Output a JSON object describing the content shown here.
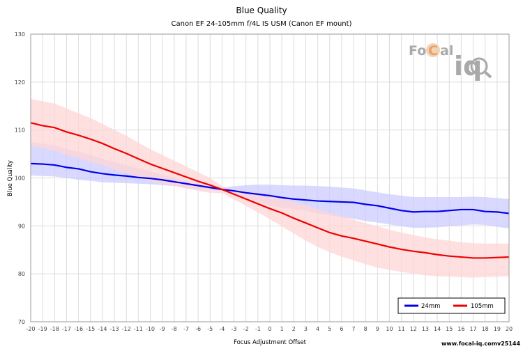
{
  "chart_data": {
    "type": "line",
    "title": "Blue Quality",
    "subtitle": "Canon EF 24-105mm f/4L IS USM (Canon EF mount)",
    "xlabel": "Focus Adjustment Offset",
    "ylabel": "Blue Quality",
    "xlim": [
      -20,
      20
    ],
    "ylim": [
      70,
      130
    ],
    "yticks": [
      70,
      80,
      90,
      100,
      110,
      120,
      130
    ],
    "x": [
      -20,
      -19,
      -18,
      -17,
      -16,
      -15,
      -14,
      -13,
      -12,
      -11,
      -10,
      -9,
      -8,
      -7,
      -6,
      -5,
      -4,
      -3,
      -2,
      -1,
      0,
      1,
      2,
      3,
      4,
      5,
      6,
      7,
      8,
      9,
      10,
      11,
      12,
      13,
      14,
      15,
      16,
      17,
      18,
      19,
      20
    ],
    "grid": true,
    "legend_position": "bottom-right",
    "series": [
      {
        "name": "24mm",
        "color": "#0000ee",
        "band_color": "#ccccff",
        "values": [
          103.0,
          102.9,
          102.7,
          102.2,
          101.9,
          101.3,
          100.9,
          100.6,
          100.4,
          100.1,
          99.9,
          99.6,
          99.2,
          98.8,
          98.4,
          98.0,
          97.6,
          97.3,
          96.9,
          96.6,
          96.3,
          95.9,
          95.6,
          95.4,
          95.2,
          95.1,
          95.0,
          94.9,
          94.5,
          94.2,
          93.7,
          93.2,
          92.9,
          93.0,
          93.0,
          93.2,
          93.4,
          93.4,
          93.0,
          92.9,
          92.6
        ],
        "upper": [
          107.5,
          107.2,
          106.8,
          106.0,
          105.5,
          104.8,
          104.0,
          103.3,
          102.7,
          102.0,
          101.4,
          100.7,
          100.0,
          99.4,
          98.9,
          98.2,
          98.0,
          98.3,
          98.5,
          98.6,
          98.6,
          98.5,
          98.4,
          98.4,
          98.3,
          98.2,
          98.0,
          97.8,
          97.4,
          97.0,
          96.6,
          96.3,
          96.0,
          96.0,
          96.0,
          96.0,
          96.0,
          96.1,
          96.0,
          95.8,
          95.6
        ],
        "lower": [
          100.5,
          100.4,
          100.3,
          100.0,
          99.6,
          99.4,
          99.1,
          99.0,
          98.9,
          98.8,
          98.7,
          98.5,
          98.3,
          97.9,
          97.6,
          97.5,
          97.3,
          96.6,
          95.6,
          95.0,
          94.2,
          93.8,
          93.5,
          93.2,
          92.6,
          92.2,
          91.8,
          91.5,
          91.0,
          90.7,
          90.3,
          89.9,
          89.6,
          89.6,
          89.7,
          89.9,
          90.1,
          90.3,
          90.2,
          89.8,
          89.5
        ]
      },
      {
        "name": "105mm",
        "color": "#ee0000",
        "band_color": "#ffd5d5",
        "values": [
          111.5,
          110.9,
          110.5,
          109.6,
          108.9,
          108.1,
          107.2,
          106.1,
          105.1,
          104.0,
          102.9,
          102.0,
          101.1,
          100.2,
          99.3,
          98.5,
          97.6,
          96.6,
          95.6,
          94.6,
          93.6,
          92.7,
          91.6,
          90.6,
          89.6,
          88.6,
          87.9,
          87.4,
          86.8,
          86.2,
          85.6,
          85.1,
          84.7,
          84.4,
          84.0,
          83.7,
          83.5,
          83.3,
          83.3,
          83.4,
          83.5
        ],
        "upper": [
          116.5,
          116.0,
          115.5,
          114.5,
          113.5,
          112.5,
          111.3,
          110.0,
          108.8,
          107.4,
          106.0,
          104.8,
          103.6,
          102.4,
          101.2,
          100.0,
          98.3,
          97.6,
          97.1,
          96.6,
          96.1,
          95.6,
          95.0,
          94.3,
          93.5,
          92.7,
          92.0,
          91.3,
          90.6,
          89.9,
          89.2,
          88.6,
          88.1,
          87.6,
          87.2,
          86.9,
          86.6,
          86.4,
          86.3,
          86.3,
          86.3
        ],
        "lower": [
          106.7,
          106.2,
          105.7,
          104.8,
          104.1,
          103.4,
          102.7,
          101.8,
          101.0,
          100.2,
          99.4,
          98.8,
          98.3,
          97.8,
          97.3,
          96.9,
          96.8,
          95.5,
          94.2,
          92.8,
          91.4,
          89.9,
          88.4,
          86.9,
          85.6,
          84.5,
          83.6,
          82.8,
          82.0,
          81.3,
          80.8,
          80.4,
          80.0,
          79.7,
          79.5,
          79.4,
          79.3,
          79.2,
          79.3,
          79.4,
          79.5
        ]
      }
    ]
  },
  "logo": {
    "brand_left": "Fo",
    "brand_mid": "C",
    "brand_right": "al",
    "brand_iq": "iq"
  },
  "footer": {
    "url": "www.focal-iq.com",
    "version": "v25144"
  }
}
